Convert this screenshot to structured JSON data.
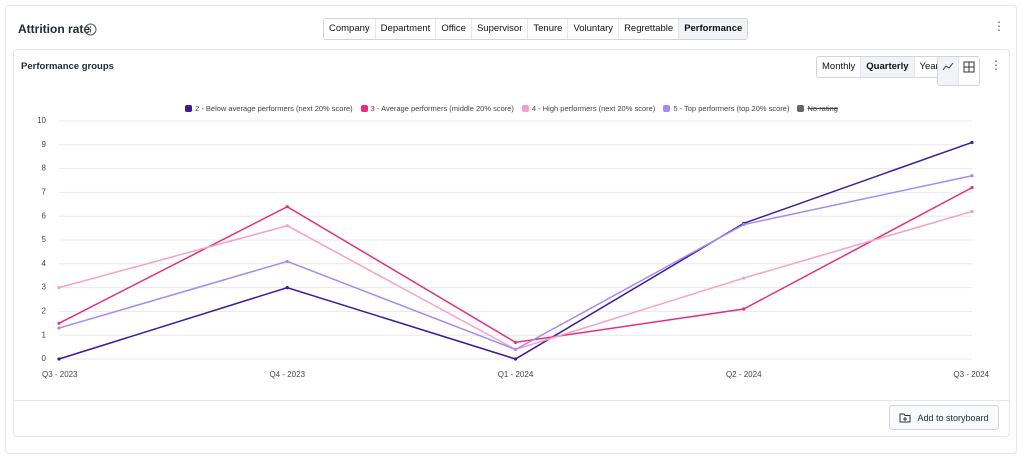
{
  "header": {
    "title": "Attrition rate",
    "tabs": [
      "Company",
      "Department",
      "Office",
      "Supervisor",
      "Tenure",
      "Voluntary",
      "Regrettable",
      "Performance"
    ],
    "active_tab": "Performance"
  },
  "panel": {
    "title": "Performance groups",
    "periods": [
      "Monthly",
      "Quarterly",
      "Yearly"
    ],
    "active_period": "Quarterly",
    "button": "Add to storyboard"
  },
  "chart_data": {
    "type": "line",
    "categories": [
      "Q3 - 2023",
      "Q4 - 2023",
      "Q1 - 2024",
      "Q2 - 2024",
      "Q3 - 2024"
    ],
    "series": [
      {
        "name": "2 - Below average performers (next 20% score)",
        "color": "#3b1a9a",
        "values": [
          0,
          3.0,
          0,
          5.7,
          9.1
        ]
      },
      {
        "name": "3 - Average performers (middle 20% score)",
        "color": "#e2307f",
        "values": [
          1.5,
          6.4,
          0.7,
          2.1,
          7.2
        ]
      },
      {
        "name": "4 - High performers (next 20% score)",
        "color": "#f4a1c6",
        "values": [
          3.0,
          5.6,
          0.4,
          3.4,
          6.2
        ]
      },
      {
        "name": "5 - Top performers (top 20% score)",
        "color": "#a58af5",
        "values": [
          1.3,
          4.1,
          0.4,
          5.65,
          7.7
        ]
      },
      {
        "name": "No rating",
        "color": "#666666",
        "hidden": true,
        "values": [
          null,
          null,
          null,
          null,
          null
        ]
      }
    ],
    "ylim": [
      0,
      10
    ],
    "yticks": [
      0,
      1,
      2,
      3,
      4,
      5,
      6,
      7,
      8,
      9,
      10
    ],
    "grid": true
  }
}
